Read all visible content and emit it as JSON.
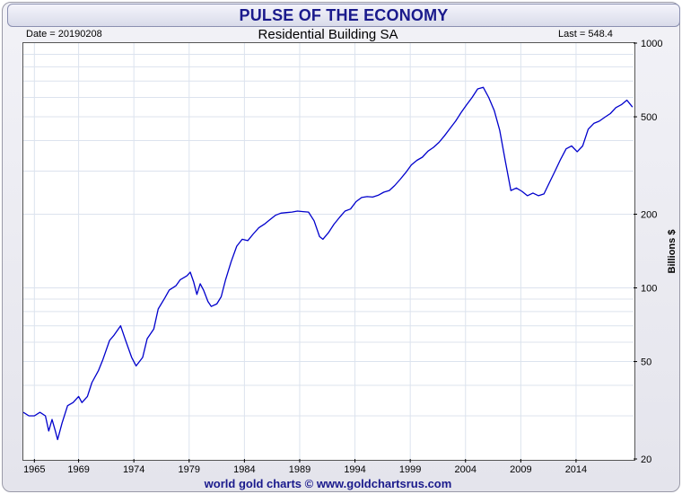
{
  "banner_title": "PULSE OF THE ECONOMY",
  "footer_text": "world gold charts © www.goldchartsrus.com",
  "colors": {
    "line": "#0000cc",
    "banner_text": "#1a1a8c",
    "grid": "#dce3ee"
  },
  "chart_data": {
    "type": "line",
    "title": "Residential Building SA",
    "date_label": "Date = 20190208",
    "last_label": "Last = 548.4",
    "ylabel": "Billions $",
    "xlabel": "",
    "y_scale": "log",
    "ylim": [
      20,
      1000
    ],
    "xlim": [
      1964.0,
      2019.2
    ],
    "grid": true,
    "x_tick_labels": [
      "1965",
      "1969",
      "1974",
      "1979",
      "1984",
      "1989",
      "1994",
      "1999",
      "2004",
      "2009",
      "2014"
    ],
    "y_tick_labels": [
      "1000",
      "500",
      "200",
      "100",
      "50",
      "20"
    ],
    "series": [
      {
        "x": [
          1964.0,
          1964.5,
          1965.0,
          1965.5,
          1966.0,
          1966.3,
          1966.6,
          1966.9,
          1967.1,
          1967.5,
          1968.0,
          1968.5,
          1969.0,
          1969.3,
          1969.8,
          1970.2,
          1970.8,
          1971.2,
          1971.8,
          1972.2,
          1972.8,
          1973.2,
          1973.8,
          1974.2,
          1974.8,
          1975.2,
          1975.8,
          1976.2,
          1976.8,
          1977.2,
          1977.8,
          1978.2,
          1978.8,
          1979.1,
          1979.4,
          1979.7,
          1980.0,
          1980.3,
          1980.7,
          1981.0,
          1981.5,
          1981.9,
          1982.3,
          1982.8,
          1983.3,
          1983.8,
          1984.3,
          1984.8,
          1985.3,
          1985.8,
          1986.3,
          1986.8,
          1987.3,
          1987.8,
          1988.3,
          1988.8,
          1989.3,
          1989.8,
          1990.3,
          1990.8,
          1991.1,
          1991.6,
          1992.1,
          1992.6,
          1993.1,
          1993.6,
          1994.1,
          1994.6,
          1995.1,
          1995.6,
          1996.1,
          1996.6,
          1997.1,
          1997.6,
          1998.1,
          1998.6,
          1999.1,
          1999.6,
          2000.1,
          2000.6,
          2001.1,
          2001.6,
          2002.1,
          2002.6,
          2003.1,
          2003.6,
          2004.1,
          2004.6,
          2005.1,
          2005.6,
          2006.1,
          2006.6,
          2007.1,
          2007.6,
          2008.1,
          2008.6,
          2009.1,
          2009.6,
          2010.1,
          2010.6,
          2011.1,
          2011.6,
          2012.1,
          2012.6,
          2013.1,
          2013.6,
          2014.1,
          2014.6,
          2015.1,
          2015.6,
          2016.1,
          2016.6,
          2017.1,
          2017.6,
          2018.1,
          2018.6,
          2019.1
        ],
        "values": [
          31,
          30,
          30,
          31,
          30,
          26,
          29,
          26,
          24,
          28,
          33,
          34,
          36,
          34,
          36,
          41,
          46,
          51,
          61,
          64,
          70,
          62,
          52,
          48,
          52,
          62,
          68,
          82,
          91,
          98,
          102,
          108,
          112,
          116,
          106,
          94,
          104,
          98,
          88,
          84,
          86,
          92,
          108,
          128,
          148,
          158,
          156,
          166,
          176,
          182,
          190,
          198,
          202,
          203,
          204,
          206,
          205,
          204,
          188,
          162,
          158,
          168,
          182,
          194,
          206,
          210,
          225,
          234,
          236,
          235,
          239,
          246,
          250,
          262,
          278,
          296,
          318,
          332,
          342,
          362,
          375,
          393,
          418,
          448,
          480,
          520,
          560,
          600,
          650,
          660,
          600,
          530,
          440,
          330,
          250,
          256,
          248,
          238,
          244,
          238,
          242,
          270,
          300,
          335,
          370,
          380,
          360,
          380,
          445,
          470,
          480,
          498,
          515,
          545,
          560,
          585,
          548
        ]
      }
    ]
  }
}
